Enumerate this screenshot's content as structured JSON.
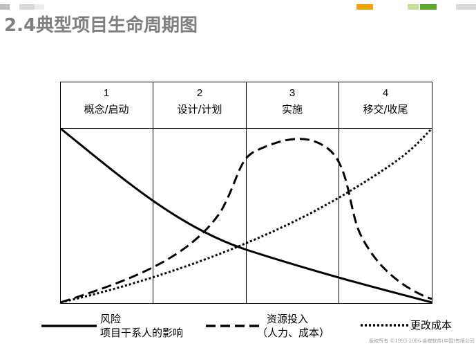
{
  "title": "2.4典型项目生命周期图",
  "phases": [
    {
      "number": "1",
      "name": "概念/启动"
    },
    {
      "number": "2",
      "name": "设计/计划"
    },
    {
      "number": "3",
      "name": "实施"
    },
    {
      "number": "4",
      "name": "移交/收尾"
    }
  ],
  "legend": {
    "risk_line1": "风险",
    "risk_line2": "项目干系人的影响",
    "resource_line1": "资源投入",
    "resource_line2": "（人力、成本）",
    "change_cost": "更改成本"
  },
  "copyright": "版权所有 ©1993-2006 金蝶软件(中国)有限公司",
  "colors": {
    "title": "#7f7f7f",
    "accent_orange": "#f0a30a",
    "accent_light_green": "#c6e09a",
    "accent_green": "#5fa82e",
    "deco_gray": "#d0d0d0"
  }
}
